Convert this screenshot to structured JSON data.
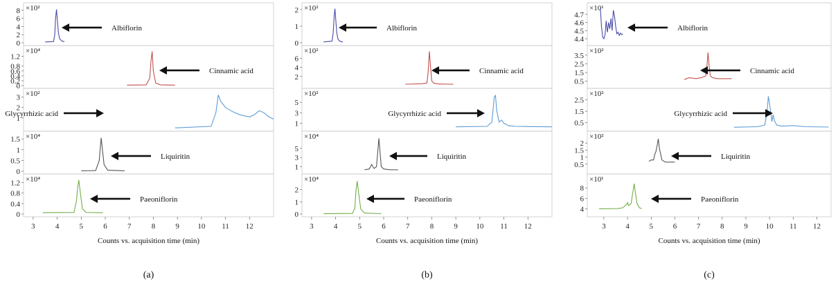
{
  "chart_data": [
    {
      "type": "line",
      "panel_label": "(a)",
      "xlabel": "Counts vs. acquisition time (min)",
      "xlim": [
        2.6,
        13.0
      ],
      "x_ticks": [
        "3",
        "4",
        "5",
        "6",
        "7",
        "8",
        "9",
        "10",
        "11",
        "12"
      ],
      "traces": [
        {
          "name": "Albiflorin",
          "color": "#4a4aa8",
          "multiplier": "×10²",
          "ylim": [
            0,
            9
          ],
          "y_ticks": [
            "0",
            "2",
            "4",
            "6",
            "8"
          ],
          "x": [
            3.5,
            3.85,
            3.9,
            3.93,
            3.97,
            4.0,
            4.05,
            4.1,
            4.2,
            4.3
          ],
          "y": [
            0.2,
            0.3,
            2.0,
            6.0,
            8.2,
            6.0,
            2.5,
            1.0,
            0.4,
            0.3
          ]
        },
        {
          "name": "Cinnamic acid",
          "color": "#c0504d",
          "multiplier": "×10⁴",
          "ylim": [
            0,
            1.5
          ],
          "y_ticks": [
            "0",
            "0.2",
            "0.4",
            "0.6",
            "0.8",
            "1.2"
          ],
          "x": [
            6.9,
            7.7,
            7.85,
            7.9,
            7.95,
            8.0,
            8.1,
            8.3,
            8.9
          ],
          "y": [
            0.02,
            0.03,
            0.3,
            1.0,
            1.4,
            0.6,
            0.1,
            0.03,
            0.02
          ]
        },
        {
          "name": "Glycyrrhizic acid",
          "color": "#5b9bd5",
          "multiplier": "×10²",
          "ylim": [
            0,
            3.5
          ],
          "y_ticks": [
            "1",
            "2",
            "3"
          ],
          "x": [
            8.9,
            10.4,
            10.6,
            10.7,
            10.8,
            11.0,
            11.3,
            11.6,
            12.0,
            12.2,
            12.4,
            12.6,
            12.8,
            13.0
          ],
          "y": [
            0.05,
            0.2,
            1.5,
            3.2,
            2.6,
            2.0,
            1.6,
            1.3,
            1.1,
            1.3,
            1.7,
            1.5,
            1.1,
            0.9
          ]
        },
        {
          "name": "Liquiritin",
          "color": "#555555",
          "multiplier": "×10⁴",
          "ylim": [
            0,
            1.7
          ],
          "y_ticks": [
            "0",
            "0.5",
            "1",
            "1.5"
          ],
          "x": [
            5.0,
            5.6,
            5.75,
            5.8,
            5.83,
            5.88,
            5.95,
            6.1,
            6.8
          ],
          "y": [
            0.02,
            0.03,
            0.5,
            1.2,
            1.55,
            1.0,
            0.3,
            0.05,
            0.02
          ]
        },
        {
          "name": "Paeoniflorin",
          "color": "#70ad47",
          "multiplier": "×10⁴",
          "ylim": [
            0,
            1.4
          ],
          "y_ticks": [
            "0",
            "0.4",
            "0.8",
            "1.2"
          ],
          "x": [
            3.4,
            4.7,
            4.8,
            4.85,
            4.9,
            4.95,
            5.05,
            5.2,
            5.9
          ],
          "y": [
            0.05,
            0.06,
            0.5,
            1.0,
            1.3,
            0.9,
            0.2,
            0.06,
            0.05
          ]
        }
      ]
    },
    {
      "type": "line",
      "panel_label": "(b)",
      "xlabel": "Counts vs. acquisition time (min)",
      "xlim": [
        2.6,
        13.0
      ],
      "x_ticks": [
        "3",
        "4",
        "5",
        "6",
        "7",
        "8",
        "9",
        "10",
        "11",
        "12"
      ],
      "traces": [
        {
          "name": "Albiflorin",
          "color": "#4a4aa8",
          "multiplier": "×10²",
          "ylim": [
            0,
            2.2
          ],
          "y_ticks": [
            "0",
            "1",
            "2"
          ],
          "x": [
            3.5,
            3.85,
            3.9,
            3.94,
            3.97,
            4.0,
            4.05,
            4.1,
            4.2,
            4.3
          ],
          "y": [
            0.05,
            0.1,
            0.6,
            1.6,
            2.05,
            1.5,
            0.6,
            0.2,
            0.08,
            0.05
          ]
        },
        {
          "name": "Cinnamic acid",
          "color": "#c0504d",
          "multiplier": "×10²",
          "ylim": [
            0,
            8
          ],
          "y_ticks": [
            "2",
            "4",
            "6"
          ],
          "x": [
            6.9,
            7.6,
            7.8,
            7.85,
            7.9,
            7.95,
            8.0,
            8.1,
            8.3,
            8.9
          ],
          "y": [
            0.3,
            0.4,
            0.6,
            3.0,
            7.5,
            4.0,
            1.0,
            0.5,
            0.35,
            0.3
          ]
        },
        {
          "name": "Glycyrrhizic acid",
          "color": "#5b9bd5",
          "multiplier": "×10²",
          "ylim": [
            0,
            7
          ],
          "y_ticks": [
            "1",
            "3",
            "5"
          ],
          "x": [
            9.0,
            10.3,
            10.5,
            10.6,
            10.65,
            10.7,
            10.8,
            10.9,
            11.0,
            11.2,
            11.5,
            12.0,
            13.0
          ],
          "y": [
            0.3,
            0.4,
            1.2,
            6.0,
            6.3,
            3.5,
            1.2,
            1.6,
            1.0,
            0.5,
            0.4,
            0.35,
            0.3
          ]
        },
        {
          "name": "Liquiritin",
          "color": "#555555",
          "multiplier": "×10⁴",
          "ylim": [
            0,
            8
          ],
          "y_ticks": [
            "1",
            "3",
            "5"
          ],
          "x": [
            5.2,
            5.4,
            5.5,
            5.6,
            5.7,
            5.75,
            5.8,
            5.85,
            5.9,
            6.0,
            6.2,
            6.6
          ],
          "y": [
            0.3,
            0.5,
            1.5,
            0.6,
            1.0,
            4.0,
            7.2,
            4.0,
            1.0,
            0.5,
            0.35,
            0.3
          ]
        },
        {
          "name": "Paeoniflorin",
          "color": "#70ad47",
          "multiplier": "×10⁴",
          "ylim": [
            0,
            3
          ],
          "y_ticks": [
            "0",
            "1",
            "2"
          ],
          "x": [
            3.5,
            4.7,
            4.8,
            4.85,
            4.9,
            4.95,
            5.05,
            5.2,
            5.9
          ],
          "y": [
            0.02,
            0.05,
            0.5,
            2.0,
            2.7,
            1.8,
            0.4,
            0.08,
            0.03
          ]
        }
      ]
    },
    {
      "type": "line",
      "panel_label": "(c)",
      "xlabel": "Counts vs. acquisition time (min)",
      "xlim": [
        2.3,
        12.6
      ],
      "x_ticks": [
        "3",
        "4",
        "5",
        "6",
        "7",
        "8",
        "9",
        "10",
        "11",
        "12"
      ],
      "traces": [
        {
          "name": "Albiflorin",
          "color": "#4a4aa8",
          "multiplier": "×10¹",
          "ylim": [
            4.35,
            4.8
          ],
          "y_ticks": [
            "4.4",
            "4.5",
            "4.6",
            "4.7"
          ],
          "x": [
            2.85,
            2.9,
            2.95,
            3.0,
            3.05,
            3.1,
            3.15,
            3.2,
            3.25,
            3.3,
            3.35,
            3.4,
            3.45,
            3.5,
            3.55,
            3.6,
            3.65,
            3.7,
            3.75,
            3.8
          ],
          "y": [
            4.78,
            4.55,
            4.42,
            4.4,
            4.45,
            4.62,
            4.48,
            4.6,
            4.52,
            4.65,
            4.5,
            4.75,
            4.68,
            4.55,
            4.46,
            4.48,
            4.44,
            4.47,
            4.45,
            4.46
          ]
        },
        {
          "name": "Cinnamic acid",
          "color": "#c0504d",
          "multiplier": "×10²",
          "ylim": [
            0,
            4.2
          ],
          "y_ticks": [
            "0.5",
            "1.5",
            "2.5",
            "3.5"
          ],
          "x": [
            6.4,
            6.6,
            6.9,
            7.1,
            7.3,
            7.35,
            7.4,
            7.45,
            7.5,
            7.6,
            7.8,
            8.1,
            8.4
          ],
          "y": [
            0.7,
            0.9,
            0.8,
            0.9,
            1.1,
            2.0,
            3.8,
            2.2,
            1.1,
            0.9,
            0.8,
            0.8,
            0.8
          ]
        },
        {
          "name": "Glycyrrhizic acid",
          "color": "#5b9bd5",
          "multiplier": "×10²",
          "ylim": [
            0,
            3.2
          ],
          "y_ticks": [
            "0.5",
            "1.5",
            "2.5"
          ],
          "x": [
            8.5,
            9.5,
            9.8,
            9.9,
            9.95,
            10.0,
            10.1,
            10.15,
            10.2,
            10.3,
            10.5,
            11.0,
            11.5,
            12.5
          ],
          "y": [
            0.1,
            0.15,
            0.3,
            1.5,
            2.8,
            2.2,
            0.6,
            1.2,
            0.7,
            0.3,
            0.2,
            0.25,
            0.15,
            0.12
          ]
        },
        {
          "name": "Liquiritin",
          "color": "#555555",
          "multiplier": "×10²",
          "ylim": [
            0,
            2.6
          ],
          "y_ticks": [
            "0.5",
            "1",
            "1.5",
            "2"
          ],
          "x": [
            4.9,
            5.0,
            5.1,
            5.15,
            5.2,
            5.25,
            5.3,
            5.35,
            5.45,
            5.6,
            5.8,
            6.0
          ],
          "y": [
            0.7,
            0.8,
            0.8,
            1.2,
            1.4,
            1.8,
            2.3,
            1.6,
            0.8,
            0.65,
            0.65,
            0.65
          ]
        },
        {
          "name": "Paeoniflorin",
          "color": "#70ad47",
          "multiplier": "×10¹",
          "ylim": [
            3,
            10
          ],
          "y_ticks": [
            "4",
            "6",
            "8"
          ],
          "x": [
            2.8,
            3.6,
            3.8,
            3.95,
            4.0,
            4.05,
            4.15,
            4.22,
            4.28,
            4.32,
            4.4,
            4.5,
            4.6
          ],
          "y": [
            4.0,
            4.05,
            4.2,
            4.8,
            5.2,
            4.6,
            5.0,
            7.0,
            8.8,
            7.5,
            5.0,
            4.2,
            4.05
          ]
        }
      ]
    }
  ]
}
